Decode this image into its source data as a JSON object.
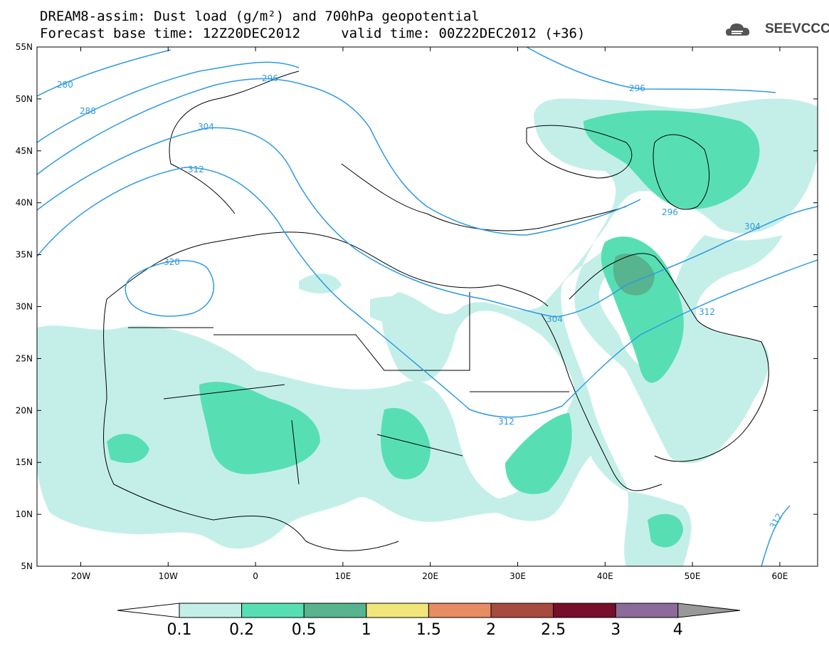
{
  "header": {
    "line1": "DREAM8-assim: Dust load (g/m²) and 700hPa geopotential",
    "line2": "Forecast base time: 12Z20DEC2012     valid time: 00Z22DEC2012 (+36)",
    "logo": "SEEVCCC",
    "logo_icon": "cloud-icon"
  },
  "map": {
    "lat_labels": [
      "55N",
      "50N",
      "45N",
      "40N",
      "35N",
      "30N",
      "25N",
      "20N",
      "15N",
      "10N",
      "5N"
    ],
    "lon_labels": [
      "20W",
      "10W",
      "0",
      "10E",
      "20E",
      "30E",
      "40E",
      "50E",
      "60E"
    ],
    "geopotential_labels": [
      "280",
      "288",
      "296",
      "296",
      "304",
      "312",
      "320",
      "296",
      "304",
      "304",
      "312",
      "312",
      "312"
    ]
  },
  "colorbar": {
    "ticks": [
      "0.1",
      "0.2",
      "0.5",
      "1",
      "1.5",
      "2",
      "2.5",
      "3",
      "4"
    ],
    "colors": [
      "#c4efe9",
      "#57dfb3",
      "#58b38f",
      "#f0e67a",
      "#e88c64",
      "#a84a3e",
      "#770e2c",
      "#8c6a9a"
    ]
  }
}
